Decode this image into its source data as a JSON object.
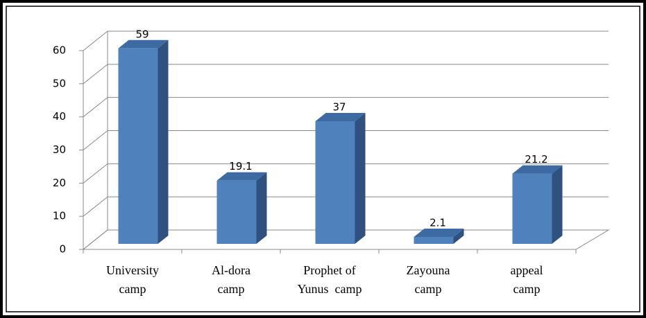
{
  "chart_data": {
    "type": "bar3d",
    "categories": [
      "University\ncamp",
      "Al-dora\ncamp",
      "Prophet of\nYunus  camp",
      "Zayouna\ncamp",
      "appeal\ncamp"
    ],
    "values": [
      59,
      19.1,
      37,
      2.1,
      21.2
    ],
    "color": "#4f81bd",
    "ylim": [
      0,
      60
    ],
    "yticks": [
      0,
      10,
      20,
      30,
      40,
      50,
      60
    ],
    "grid": true
  }
}
